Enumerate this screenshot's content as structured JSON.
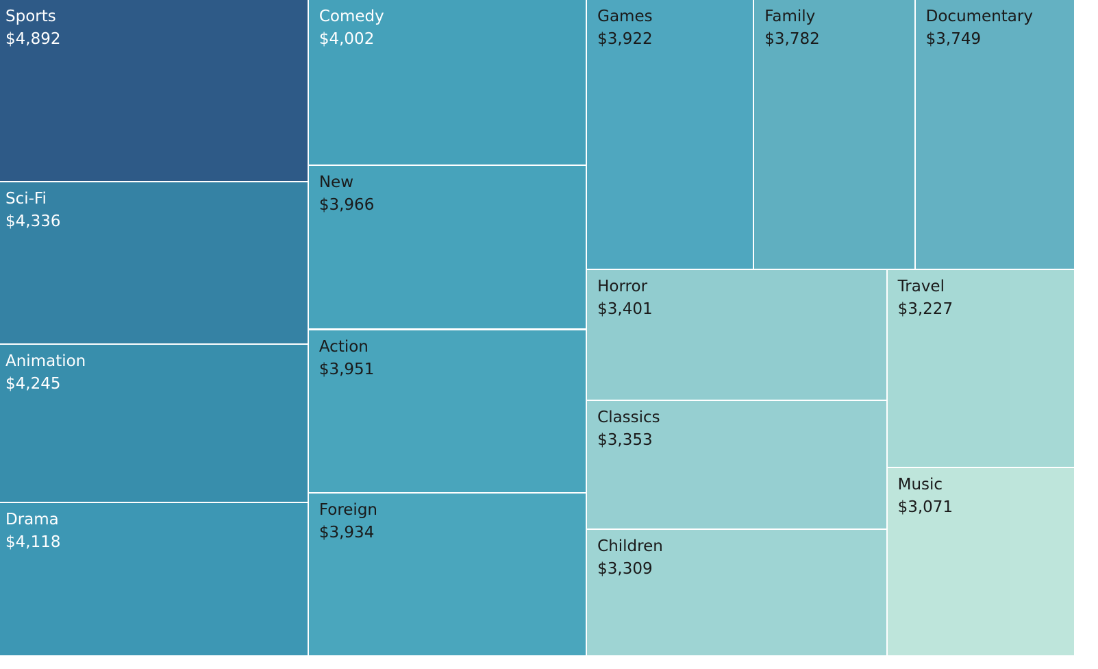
{
  "chart_data": {
    "type": "treemap",
    "title": "",
    "value_prefix": "$",
    "items": [
      {
        "category": "Sports",
        "value": 4892,
        "label": "$4,892",
        "color": "#2e5a87",
        "text_color": "#ffffff"
      },
      {
        "category": "Sci-Fi",
        "value": 4336,
        "label": "$4,336",
        "color": "#3582a4",
        "text_color": "#ffffff"
      },
      {
        "category": "Animation",
        "value": 4245,
        "label": "$4,245",
        "color": "#388eac",
        "text_color": "#ffffff"
      },
      {
        "category": "Drama",
        "value": 4118,
        "label": "$4,118",
        "color": "#3d97b4",
        "text_color": "#ffffff"
      },
      {
        "category": "Comedy",
        "value": 4002,
        "label": "$4,002",
        "color": "#45a1ba",
        "text_color": "#ffffff"
      },
      {
        "category": "New",
        "value": 3966,
        "label": "$3,966",
        "color": "#47a3bb",
        "text_color": "#1a1a1a"
      },
      {
        "category": "Action",
        "value": 3951,
        "label": "$3,951",
        "color": "#49a5bc",
        "text_color": "#1a1a1a"
      },
      {
        "category": "Foreign",
        "value": 3934,
        "label": "$3,934",
        "color": "#4aa6bd",
        "text_color": "#1a1a1a"
      },
      {
        "category": "Games",
        "value": 3922,
        "label": "$3,922",
        "color": "#4fa7bf",
        "text_color": "#1a1a1a"
      },
      {
        "category": "Family",
        "value": 3782,
        "label": "$3,782",
        "color": "#60afc0",
        "text_color": "#1a1a1a"
      },
      {
        "category": "Documentary",
        "value": 3749,
        "label": "$3,749",
        "color": "#64b1c2",
        "text_color": "#1a1a1a"
      },
      {
        "category": "Horror",
        "value": 3401,
        "label": "$3,401",
        "color": "#91cccf",
        "text_color": "#1a1a1a"
      },
      {
        "category": "Classics",
        "value": 3353,
        "label": "$3,353",
        "color": "#96cfd1",
        "text_color": "#1a1a1a"
      },
      {
        "category": "Children",
        "value": 3309,
        "label": "$3,309",
        "color": "#9ed4d3",
        "text_color": "#1a1a1a"
      },
      {
        "category": "Travel",
        "value": 3227,
        "label": "$3,227",
        "color": "#a6d9d5",
        "text_color": "#1a1a1a"
      },
      {
        "category": "Music",
        "value": 3071,
        "label": "$3,071",
        "color": "#bee5db",
        "text_color": "#1a1a1a"
      }
    ]
  }
}
